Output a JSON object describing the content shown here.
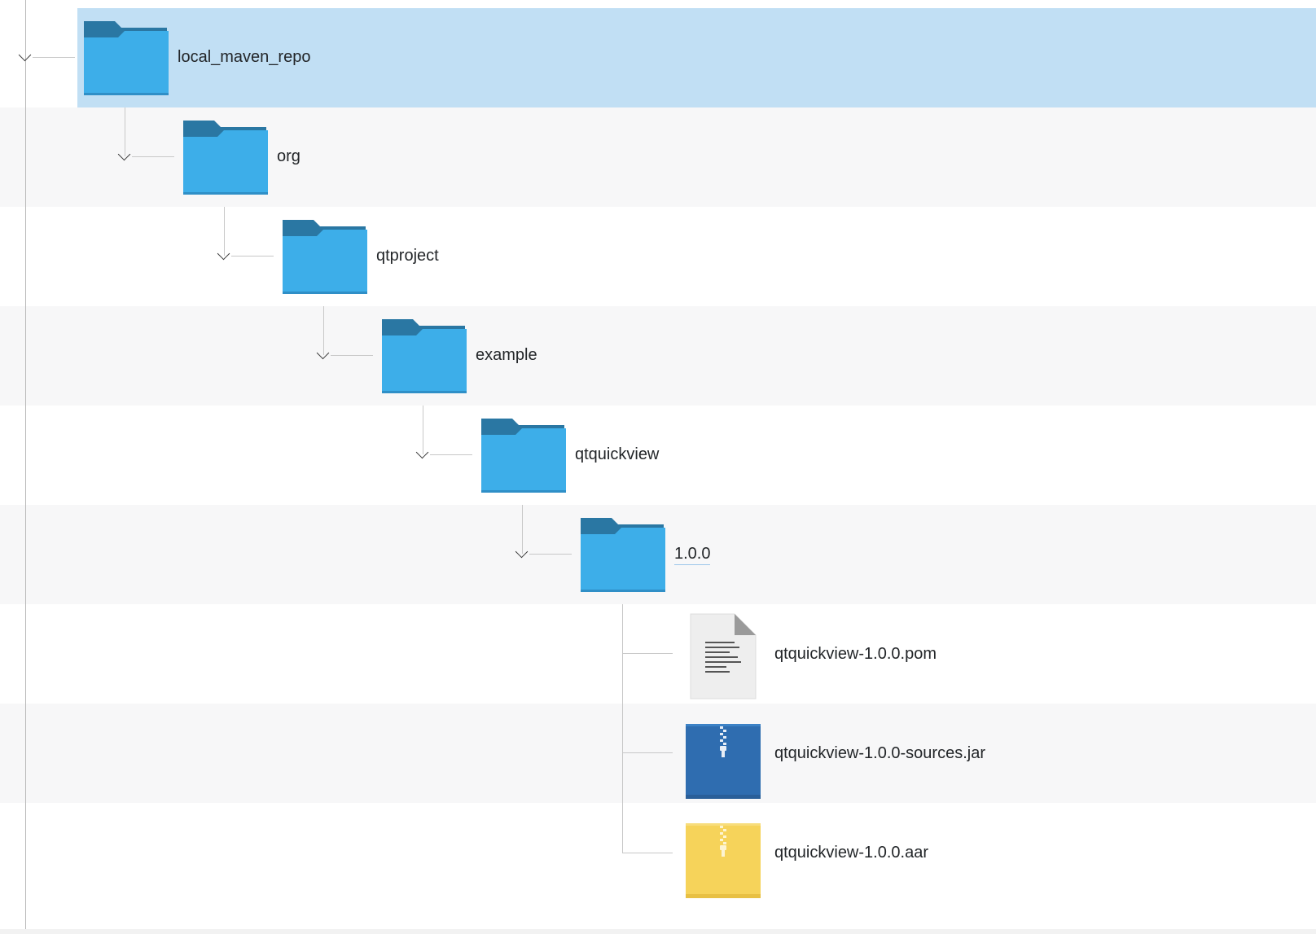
{
  "tree": {
    "items": [
      {
        "name": "local_maven_repo",
        "type": "folder",
        "selected": true,
        "expanded": true
      },
      {
        "name": "org",
        "type": "folder",
        "expanded": true
      },
      {
        "name": "qtproject",
        "type": "folder",
        "expanded": true
      },
      {
        "name": "example",
        "type": "folder",
        "expanded": true
      },
      {
        "name": "qtquickview",
        "type": "folder",
        "expanded": true
      },
      {
        "name": "1.0.0",
        "type": "folder",
        "expanded": true,
        "hovered": true
      },
      {
        "name": "qtquickview-1.0.0.pom",
        "type": "text-file"
      },
      {
        "name": "qtquickview-1.0.0-sources.jar",
        "type": "jar-archive"
      },
      {
        "name": "qtquickview-1.0.0.aar",
        "type": "aar-archive"
      }
    ]
  },
  "colors": {
    "selection": "#c1dff4",
    "folder_body": "#3daee9",
    "folder_tab": "#2a77a3",
    "jar": "#2f6db0",
    "aar": "#f6d35a",
    "alt_row": "#f7f7f8"
  }
}
